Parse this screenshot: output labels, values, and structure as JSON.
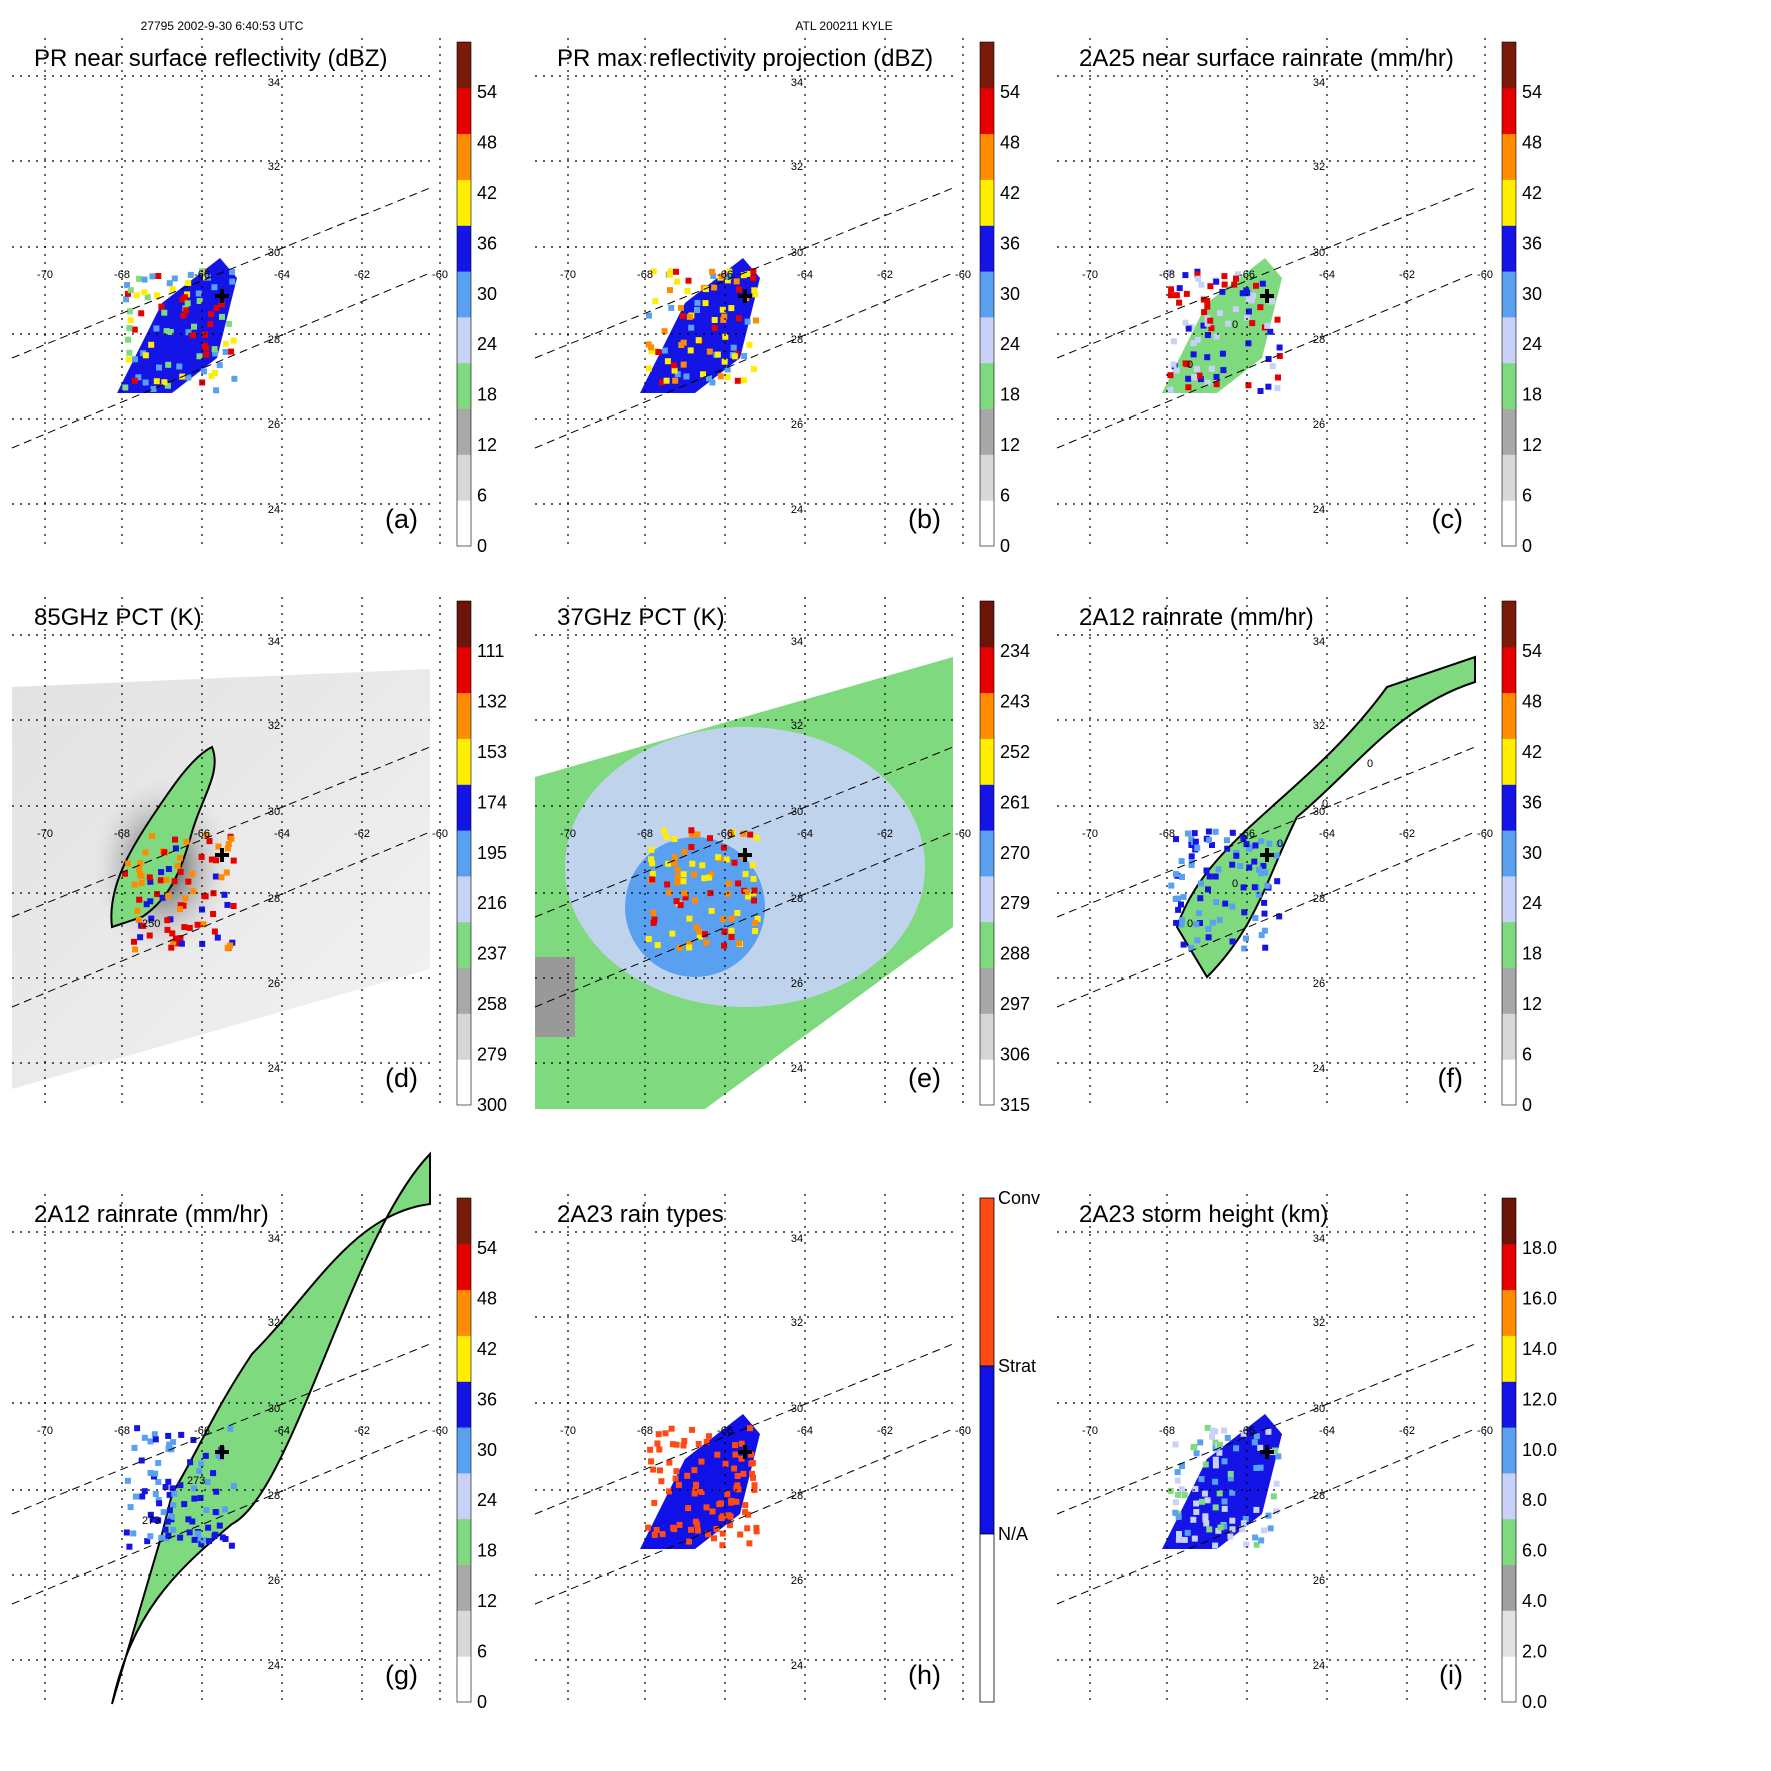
{
  "header": {
    "left": "27795 2002-9-30 6:40:53 UTC",
    "center": "ATL 200211 KYLE"
  },
  "lon_ticks": [
    "-70",
    "-68",
    "-66",
    "-64",
    "-62",
    "-60"
  ],
  "lat_ticks": [
    "34",
    "32",
    "30",
    "28",
    "26",
    "24"
  ],
  "colors": {
    "green": "#7fd97f",
    "blue": "#1414e6",
    "lightblue": "#5aa0f0",
    "paleblue": "#c8d2f8",
    "yellow": "#ffee00",
    "orange": "#ff8c00",
    "red": "#e60000",
    "darkred": "#6e1a0a",
    "gray": "#999999",
    "lightgray": "#dddddd",
    "rainconv": "#ff4a14",
    "rainstrat": "#1010e8"
  },
  "chart_data": [
    {
      "id": "a",
      "type": "heatmap",
      "title": "PR near surface reflectivity (dBZ)",
      "panel_label": "(a)",
      "colorbar_ticks": [
        "54",
        "48",
        "42",
        "36",
        "30",
        "24",
        "18",
        "12",
        "6",
        "0"
      ],
      "colorbar_range": [
        0,
        60
      ]
    },
    {
      "id": "b",
      "type": "heatmap",
      "title": "PR max reflectivity projection (dBZ)",
      "panel_label": "(b)",
      "colorbar_ticks": [
        "54",
        "48",
        "42",
        "36",
        "30",
        "24",
        "18",
        "12",
        "6",
        "0"
      ],
      "colorbar_range": [
        0,
        60
      ]
    },
    {
      "id": "c",
      "type": "heatmap",
      "title": "2A25 near surface rainrate (mm/hr)",
      "panel_label": "(c)",
      "colorbar_ticks": [
        "54",
        "48",
        "42",
        "36",
        "30",
        "24",
        "18",
        "12",
        "6",
        "0"
      ],
      "colorbar_range": [
        0,
        60
      ],
      "contour_labels": [
        "0",
        "0"
      ]
    },
    {
      "id": "d",
      "type": "heatmap",
      "title": "85GHz PCT (K)",
      "panel_label": "(d)",
      "colorbar_ticks": [
        "111",
        "132",
        "153",
        "174",
        "195",
        "216",
        "237",
        "258",
        "279",
        "300"
      ],
      "colorbar_range": [
        300,
        90
      ],
      "contour_labels": [
        "250"
      ]
    },
    {
      "id": "e",
      "type": "heatmap",
      "title": "37GHz PCT (K)",
      "panel_label": "(e)",
      "colorbar_ticks": [
        "234",
        "243",
        "252",
        "261",
        "270",
        "279",
        "288",
        "297",
        "306",
        "315"
      ],
      "colorbar_range": [
        315,
        225
      ]
    },
    {
      "id": "f",
      "type": "heatmap",
      "title": "2A12 rainrate (mm/hr)",
      "panel_label": "(f)",
      "colorbar_ticks": [
        "54",
        "48",
        "42",
        "36",
        "30",
        "24",
        "18",
        "12",
        "6",
        "0"
      ],
      "colorbar_range": [
        0,
        60
      ],
      "contour_labels": [
        "0",
        "0",
        "0",
        "0",
        "0"
      ]
    },
    {
      "id": "g",
      "type": "heatmap",
      "title": "2A12 rainrate (mm/hr)",
      "panel_label": "(g)",
      "colorbar_ticks": [
        "54",
        "48",
        "42",
        "36",
        "30",
        "24",
        "18",
        "12",
        "6",
        "0"
      ],
      "colorbar_range": [
        0,
        60
      ],
      "contour_labels": [
        "273",
        "273"
      ]
    },
    {
      "id": "h",
      "type": "heatmap",
      "title": "2A23 rain types",
      "panel_label": "(h)",
      "colorbar_ticks": [
        "Conv",
        "Strat",
        "N/A"
      ],
      "categorical": true
    },
    {
      "id": "i",
      "type": "heatmap",
      "title": "2A23 storm height (km)",
      "panel_label": "(i)",
      "colorbar_ticks": [
        "18.0",
        "16.0",
        "14.0",
        "12.0",
        "10.0",
        "8.0",
        "6.0",
        "4.0",
        "2.0",
        "0.0"
      ],
      "colorbar_range": [
        0,
        20
      ]
    }
  ]
}
